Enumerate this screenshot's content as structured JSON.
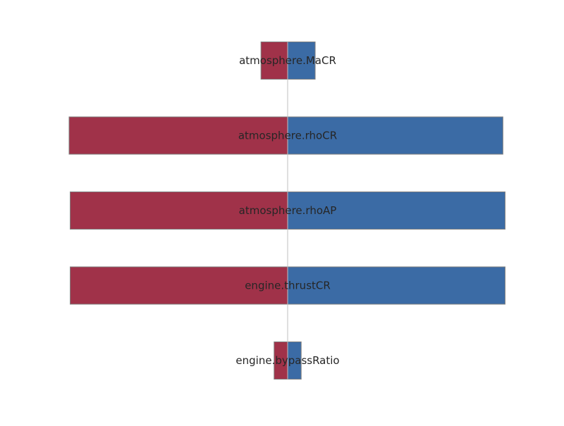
{
  "chart_data": {
    "type": "bar",
    "orientation": "horizontal",
    "title": "",
    "xlabel": "",
    "ylabel": "",
    "grid": false,
    "legend": "none",
    "axes_visible": false,
    "xlim": [
      -1,
      1
    ],
    "center_line_color": "#bfbfbf",
    "bar_edge_color": "#808080",
    "colors": {
      "positive": "#3b6ba5",
      "negative": "#a03249"
    },
    "categories": [
      "atmosphere.MaCR",
      "atmosphere.rhoCR",
      "atmosphere.rhoAP",
      "engine.thrustCR",
      "engine.bypassRatio"
    ],
    "series": [
      {
        "values": [
          -0.122,
          0.985,
          -0.995,
          -0.995,
          -0.062
        ]
      },
      {
        "values": [
          0.126,
          -1.0,
          0.995,
          0.995,
          0.062
        ]
      }
    ]
  }
}
